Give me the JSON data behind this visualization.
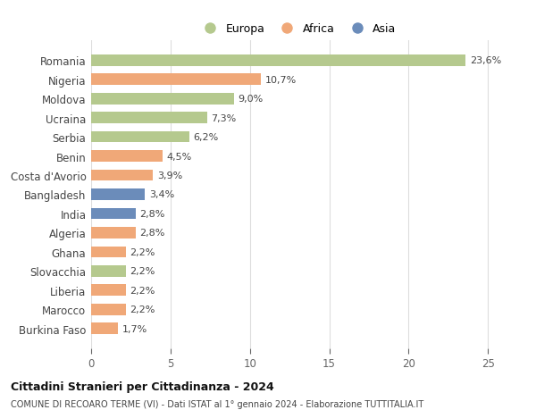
{
  "countries": [
    "Romania",
    "Nigeria",
    "Moldova",
    "Ucraina",
    "Serbia",
    "Benin",
    "Costa d'Avorio",
    "Bangladesh",
    "India",
    "Algeria",
    "Ghana",
    "Slovacchia",
    "Liberia",
    "Marocco",
    "Burkina Faso"
  ],
  "values": [
    23.6,
    10.7,
    9.0,
    7.3,
    6.2,
    4.5,
    3.9,
    3.4,
    2.8,
    2.8,
    2.2,
    2.2,
    2.2,
    2.2,
    1.7
  ],
  "labels": [
    "23,6%",
    "10,7%",
    "9,0%",
    "7,3%",
    "6,2%",
    "4,5%",
    "3,9%",
    "3,4%",
    "2,8%",
    "2,8%",
    "2,2%",
    "2,2%",
    "2,2%",
    "2,2%",
    "1,7%"
  ],
  "continents": [
    "Europa",
    "Africa",
    "Europa",
    "Europa",
    "Europa",
    "Africa",
    "Africa",
    "Asia",
    "Asia",
    "Africa",
    "Africa",
    "Europa",
    "Africa",
    "Africa",
    "Africa"
  ],
  "colors": {
    "Europa": "#b5c98e",
    "Africa": "#f0a878",
    "Asia": "#6b8cba"
  },
  "title": "Cittadini Stranieri per Cittadinanza - 2024",
  "subtitle": "COMUNE DI RECOARO TERME (VI) - Dati ISTAT al 1° gennaio 2024 - Elaborazione TUTTITALIA.IT",
  "xlim": [
    0,
    26
  ],
  "xticks": [
    0,
    5,
    10,
    15,
    20,
    25
  ],
  "background_color": "#ffffff",
  "grid_color": "#dddddd",
  "bar_height": 0.6
}
